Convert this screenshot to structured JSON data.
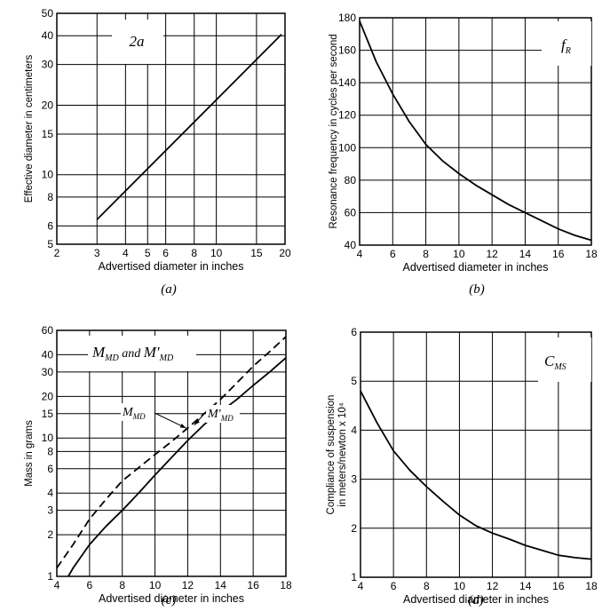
{
  "chart_data": [
    {
      "id": "a",
      "type": "line",
      "xscale": "log",
      "yscale": "log",
      "xlim": [
        2,
        20
      ],
      "ylim": [
        5,
        50
      ],
      "xticks": [
        2,
        3,
        4,
        5,
        6,
        8,
        10,
        15,
        20
      ],
      "yticks": [
        5,
        6,
        8,
        10,
        15,
        20,
        30,
        40,
        50
      ],
      "xlabel": "Advertised diameter in inches",
      "ylabel": "Effective diameter in centimeters",
      "caption": "(a)",
      "label": {
        "main": "2a",
        "sub": ""
      },
      "series": [
        {
          "name": "2a",
          "dash": false,
          "x": [
            3,
            19.3
          ],
          "y": [
            6.4,
            40.5
          ]
        }
      ]
    },
    {
      "id": "b",
      "type": "line",
      "xscale": "linear",
      "yscale": "linear",
      "xlim": [
        4,
        18
      ],
      "ylim": [
        40,
        180
      ],
      "xticks": [
        4,
        6,
        8,
        10,
        12,
        14,
        16,
        18
      ],
      "yticks": [
        40,
        60,
        80,
        100,
        120,
        140,
        160,
        180
      ],
      "xlabel": "Advertised diameter in inches",
      "ylabel": "Resonance frequency in cycles per second",
      "caption": "(b)",
      "label": {
        "main": "f",
        "sub": "R"
      },
      "series": [
        {
          "name": "fR",
          "dash": false,
          "x": [
            4,
            5,
            6,
            7,
            8,
            9,
            10,
            11,
            12,
            13,
            14,
            15,
            16,
            17,
            18
          ],
          "y": [
            178,
            153,
            133,
            116,
            102,
            92,
            84,
            77,
            71,
            65,
            60,
            55,
            50,
            46,
            43
          ]
        }
      ]
    },
    {
      "id": "c",
      "type": "line",
      "xscale": "linear",
      "yscale": "log",
      "xlim": [
        4,
        18
      ],
      "ylim": [
        1,
        60
      ],
      "xticks": [
        4,
        6,
        8,
        10,
        12,
        14,
        16,
        18
      ],
      "yticks": [
        1,
        2,
        3,
        4,
        6,
        8,
        10,
        15,
        20,
        30,
        40,
        60
      ],
      "xlabel": "Advertised diameter in inches",
      "ylabel": "Mass in grams",
      "caption": "(c)",
      "label": {
        "main": "M",
        "sub": "MD",
        "join": " and ",
        "main2": "M′",
        "sub2": "MD"
      },
      "annotations": [
        {
          "main": "M",
          "sub": "MD",
          "x": 10.4,
          "y": 11.5,
          "arrow_to_x": 11.9,
          "arrow_to_y": 11.8
        },
        {
          "main": "M′",
          "sub": "MD",
          "x": 13.3,
          "y": 12.5,
          "arrow_to_x": 12.4,
          "arrow_to_y": 12.4
        }
      ],
      "series": [
        {
          "name": "M_MD",
          "dash": true,
          "x": [
            4,
            5,
            6,
            7,
            8,
            9,
            10,
            11,
            12,
            13,
            14,
            15,
            16,
            17,
            18
          ],
          "y": [
            1.15,
            1.7,
            2.6,
            3.6,
            4.9,
            6.1,
            7.6,
            9.4,
            11.8,
            15,
            19,
            25,
            33,
            42,
            54
          ]
        },
        {
          "name": "M'_MD",
          "dash": false,
          "x": [
            4.7,
            5,
            6,
            7,
            8,
            9,
            10,
            11,
            12,
            13,
            14,
            15,
            16,
            17,
            18
          ],
          "y": [
            1,
            1.15,
            1.7,
            2.3,
            3.0,
            4.0,
            5.4,
            7.2,
            9.6,
            12.5,
            15.5,
            19,
            24,
            30,
            38
          ]
        }
      ]
    },
    {
      "id": "d",
      "type": "line",
      "xscale": "linear",
      "yscale": "linear",
      "xlim": [
        4,
        18
      ],
      "ylim": [
        1,
        6
      ],
      "xticks": [
        4,
        6,
        8,
        10,
        12,
        14,
        16,
        18
      ],
      "yticks": [
        1,
        2,
        3,
        4,
        5,
        6
      ],
      "xlabel": "Advertised diameter in inches",
      "ylabel": "Compliance of suspension",
      "ylabel2": "in meters/newton x 10⁴",
      "caption": "(d)",
      "label": {
        "main": "C",
        "sub": "MS"
      },
      "series": [
        {
          "name": "CMS",
          "dash": false,
          "x": [
            4,
            5,
            6,
            7,
            8,
            9,
            10,
            11,
            12,
            13,
            14,
            15,
            16,
            17,
            18
          ],
          "y": [
            4.8,
            4.15,
            3.58,
            3.18,
            2.85,
            2.55,
            2.27,
            2.05,
            1.9,
            1.78,
            1.65,
            1.55,
            1.45,
            1.4,
            1.37
          ]
        }
      ]
    }
  ]
}
